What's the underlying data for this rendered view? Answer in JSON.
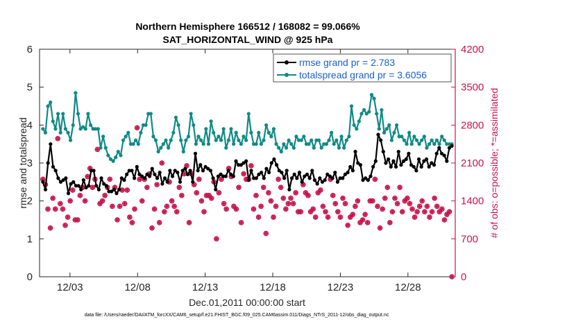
{
  "chart_data": {
    "type": "line",
    "title_line1": "Northern Hemisphere 166512 / 168082 = 99.066%",
    "title_line2": "SAT_HORIZONTAL_WIND @ 925 hPa",
    "xlabel": "Dec.01,2011 00:00:00 start",
    "ylabel_left": "rmse and totalspread",
    "ylabel_right": "# of obs: o=possible; *=assimilated",
    "footnote": "data file: /Users/raeder/DAI/ATM_forcXX/CAM6_setup/f.e21.FHIST_BGC.f09_025.CAM6assim.011/Diags_NTrS_2011-12/obs_diag_output.nc",
    "x_range": [
      0.75,
      31.5
    ],
    "x_tick_values": [
      3,
      8,
      13,
      18,
      23,
      28
    ],
    "x_tick_labels": [
      "12/03",
      "12/08",
      "12/13",
      "12/18",
      "12/23",
      "12/28"
    ],
    "ylim_left": [
      0,
      6
    ],
    "y_ticks_left": [
      "0",
      "1",
      "2",
      "3",
      "4",
      "5",
      "6"
    ],
    "ylim_right": [
      0,
      4200
    ],
    "y_ticks_right": [
      "0",
      "700",
      "1400",
      "2100",
      "2800",
      "3500",
      "4200"
    ],
    "colors": {
      "rmse": "#000000",
      "spread": "#0f8a86",
      "obs": "#c8144b",
      "legend_text": "#1a5fd6",
      "axis": "#262626"
    },
    "series": [
      {
        "name": "rmse grand pr = 2.783",
        "key": "rmse",
        "values": [
          2.5,
          2.3,
          3.0,
          3.5,
          2.9,
          2.8,
          2.6,
          2.5,
          2.55,
          2.6,
          2.2,
          2.45,
          2.5,
          2.4,
          2.4,
          2.3,
          2.55,
          2.35,
          2.4,
          2.8,
          2.8,
          2.4,
          2.3,
          2.6,
          2.45,
          2.4,
          2.25,
          2.25,
          2.3,
          2.2,
          2.3,
          2.6,
          2.55,
          2.7,
          2.8,
          2.8,
          2.6,
          2.9,
          2.7,
          2.65,
          2.6,
          2.7,
          2.65,
          2.85,
          2.7,
          2.6,
          2.75,
          2.45,
          2.6,
          2.5,
          2.8,
          2.65,
          2.8,
          2.75,
          2.5,
          2.8,
          2.85,
          2.7,
          2.8,
          2.5,
          3.25,
          2.8,
          2.95,
          2.8,
          2.9,
          2.85,
          2.8,
          2.6,
          2.3,
          2.65,
          2.7,
          2.65,
          2.65,
          2.8,
          2.7,
          2.65,
          3.05,
          2.95,
          2.95,
          3.0,
          3.05,
          2.55,
          2.8,
          2.6,
          2.6,
          2.7,
          2.75,
          2.6,
          2.85,
          2.75,
          3.0,
          3.1,
          2.95,
          2.8,
          2.75,
          2.6,
          2.8,
          2.3,
          2.6,
          2.7,
          2.6,
          2.75,
          2.5,
          2.65,
          2.7,
          2.6,
          2.8,
          2.55,
          2.45,
          2.6,
          2.5,
          2.55,
          2.7,
          2.65,
          2.6,
          2.75,
          2.5,
          2.6,
          2.6,
          2.7,
          2.75,
          2.9,
          2.8,
          3.3,
          3.0,
          2.95,
          2.55,
          2.6,
          2.55,
          2.65,
          2.9,
          3.05,
          3.75,
          3.6,
          3.3,
          3.0,
          3.1,
          2.9,
          3.05,
          2.9,
          3.3,
          2.95,
          3.05,
          3.1,
          3.25,
          2.95,
          2.9,
          2.8,
          3.1,
          2.9,
          3.05,
          3.1,
          2.9,
          3.0,
          2.95,
          3.25,
          3.4,
          3.25,
          3.2,
          3.05,
          3.4,
          3.45
        ],
        "note": "grand mean 2.783"
      },
      {
        "name": "totalspread grand pr = 3.6056",
        "key": "spread",
        "values": [
          3.9,
          3.8,
          4.5,
          4.6,
          4.1,
          3.9,
          4.3,
          3.8,
          4.3,
          3.9,
          3.8,
          3.6,
          4.0,
          4.85,
          4.3,
          3.9,
          3.95,
          3.9,
          4.3,
          4.0,
          3.9,
          3.9,
          3.9,
          3.4,
          3.7,
          3.4,
          3.2,
          3.1,
          3.05,
          3.15,
          3.3,
          3.2,
          3.6,
          3.7,
          3.8,
          3.5,
          3.5,
          3.6,
          3.5,
          3.8,
          4.0,
          4.0,
          4.3,
          4.3,
          3.7,
          3.6,
          3.3,
          3.4,
          3.5,
          3.6,
          3.4,
          3.6,
          3.8,
          4.2,
          4.0,
          3.6,
          3.3,
          3.6,
          3.7,
          4.3,
          4.0,
          3.5,
          3.7,
          3.6,
          3.5,
          3.9,
          3.5,
          4.1,
          3.8,
          3.6,
          3.7,
          3.6,
          3.9,
          3.4,
          3.6,
          3.9,
          3.5,
          3.8,
          3.6,
          3.5,
          3.7,
          3.6,
          4.3,
          3.8,
          3.5,
          3.5,
          3.8,
          3.5,
          3.6,
          4.0,
          3.8,
          3.7,
          3.9,
          3.5,
          3.4,
          3.3,
          3.5,
          3.4,
          3.6,
          3.5,
          3.4,
          3.7,
          3.6,
          3.6,
          3.7,
          3.5,
          3.5,
          3.6,
          3.4,
          3.6,
          3.6,
          3.4,
          3.5,
          3.5,
          3.6,
          3.8,
          3.5,
          3.6,
          3.4,
          3.7,
          3.4,
          3.6,
          3.7,
          4.5,
          4.0,
          3.9,
          4.1,
          4.3,
          4.4,
          4.3,
          4.35,
          4.8,
          4.7,
          4.3,
          3.9,
          4.4,
          3.8,
          3.9,
          4.0,
          3.6,
          3.8,
          4.0,
          3.7,
          3.7,
          3.6,
          3.5,
          3.8,
          3.5,
          3.7,
          3.6,
          3.5,
          3.6,
          3.7,
          3.4,
          3.5,
          3.6,
          3.5,
          3.6,
          3.5,
          3.7,
          3.6,
          3.5,
          3.5,
          3.5
        ],
        "note": "grand mean 3.6056"
      },
      {
        "name": "possible",
        "key": "obs_possible",
        "marker": "o",
        "values": [
          1800,
          1700,
          1250,
          900,
          1450,
          1250,
          2550,
          1350,
          1250,
          950,
          1100,
          1400,
          1600,
          1050,
          1050,
          1500,
          1650,
          1400,
          1850,
          2000,
          1650,
          1800,
          2350,
          1350,
          1400,
          1500,
          1650,
          1800,
          1300,
          1650,
          1050,
          1300,
          1600,
          1350,
          1600,
          1100,
          1000,
          1250,
          2750,
          1800,
          1400,
          1800,
          1650,
          1900,
          900,
          1250,
          1700,
          1000,
          2100,
          1200,
          1300,
          1750,
          1400,
          1300,
          1200,
          1650,
          1500,
          1900,
          2050,
          1000,
          1900,
          1700,
          1550,
          1800,
          1400,
          1200,
          1500,
          1500,
          1450,
          1750,
          700,
          1550,
          1800,
          1350,
          1250,
          2000,
          1850,
          1300,
          1250,
          1650,
          1000,
          1900,
          1800,
          1800,
          2050,
          1250,
          1500,
          1100,
          1300,
          1650,
          800,
          1550,
          1400,
          1100,
          1300,
          1800,
          1650,
          1450,
          1250,
          1350,
          1450,
          1350,
          1550,
          1200,
          1200,
          1700,
          1550,
          1500,
          1200,
          1250,
          1100,
          1550,
          1600,
          1300,
          1200,
          1100,
          1800,
          1500,
          1350,
          1200,
          1100,
          1450,
          1350,
          950,
          1100,
          1150,
          1300,
          1400,
          1000,
          1050,
          1150,
          1000,
          1400,
          1400,
          1800,
          1300,
          900,
          1250,
          1450,
          1650,
          1000,
          1200,
          1450,
          1350,
          1650,
          1200,
          1400,
          1450,
          1350,
          1250,
          1100,
          1200,
          1300,
          1400,
          1200,
          1300,
          1100,
          1200,
          1450,
          1300,
          1200,
          1250,
          1050,
          1150,
          1200,
          0
        ]
      },
      {
        "name": "assimilated",
        "key": "obs_assimilated",
        "marker": "*",
        "values": [
          1800,
          1700,
          1250,
          900,
          1450,
          1250,
          2550,
          1350,
          1250,
          950,
          1100,
          1400,
          1600,
          1050,
          1050,
          1500,
          1650,
          1400,
          1850,
          2000,
          1650,
          1800,
          2350,
          1350,
          1400,
          1500,
          1650,
          1800,
          1300,
          1650,
          1050,
          1300,
          1600,
          1350,
          1600,
          1100,
          1000,
          1250,
          2750,
          1800,
          1400,
          1800,
          1650,
          1900,
          900,
          1250,
          1700,
          1000,
          2100,
          1200,
          1300,
          1750,
          1400,
          1300,
          1200,
          1650,
          1500,
          1900,
          2050,
          1000,
          1900,
          1700,
          1550,
          1800,
          1400,
          1200,
          1500,
          1500,
          1450,
          1750,
          700,
          1550,
          1800,
          1350,
          1250,
          2000,
          1850,
          1300,
          1250,
          1650,
          1000,
          1900,
          1800,
          1800,
          2050,
          1250,
          1500,
          1100,
          1300,
          1650,
          800,
          1550,
          1400,
          1100,
          1300,
          1800,
          1650,
          1450,
          1250,
          1350,
          1450,
          1350,
          1550,
          1200,
          1200,
          1700,
          1550,
          1500,
          1200,
          1250,
          1100,
          1550,
          1600,
          1300,
          1200,
          1100,
          1800,
          1500,
          1350,
          1200,
          1100,
          1450,
          1350,
          950,
          1100,
          1150,
          1300,
          1400,
          1000,
          1050,
          1150,
          1000,
          1400,
          1400,
          1800,
          1300,
          900,
          1250,
          1450,
          1650,
          1000,
          1200,
          1450,
          1350,
          1650,
          1200,
          1400,
          1450,
          1350,
          1250,
          1100,
          1200,
          1300,
          1400,
          1200,
          1300,
          1100,
          1200,
          1450,
          1300,
          1200,
          1250,
          1050,
          1150,
          1200,
          0
        ]
      }
    ],
    "legend": [
      {
        "label": "rmse grand pr = 2.783",
        "color": "#000000"
      },
      {
        "label": "totalspread grand pr = 3.6056",
        "color": "#0f8a86"
      }
    ],
    "legend_position": "top-right"
  }
}
